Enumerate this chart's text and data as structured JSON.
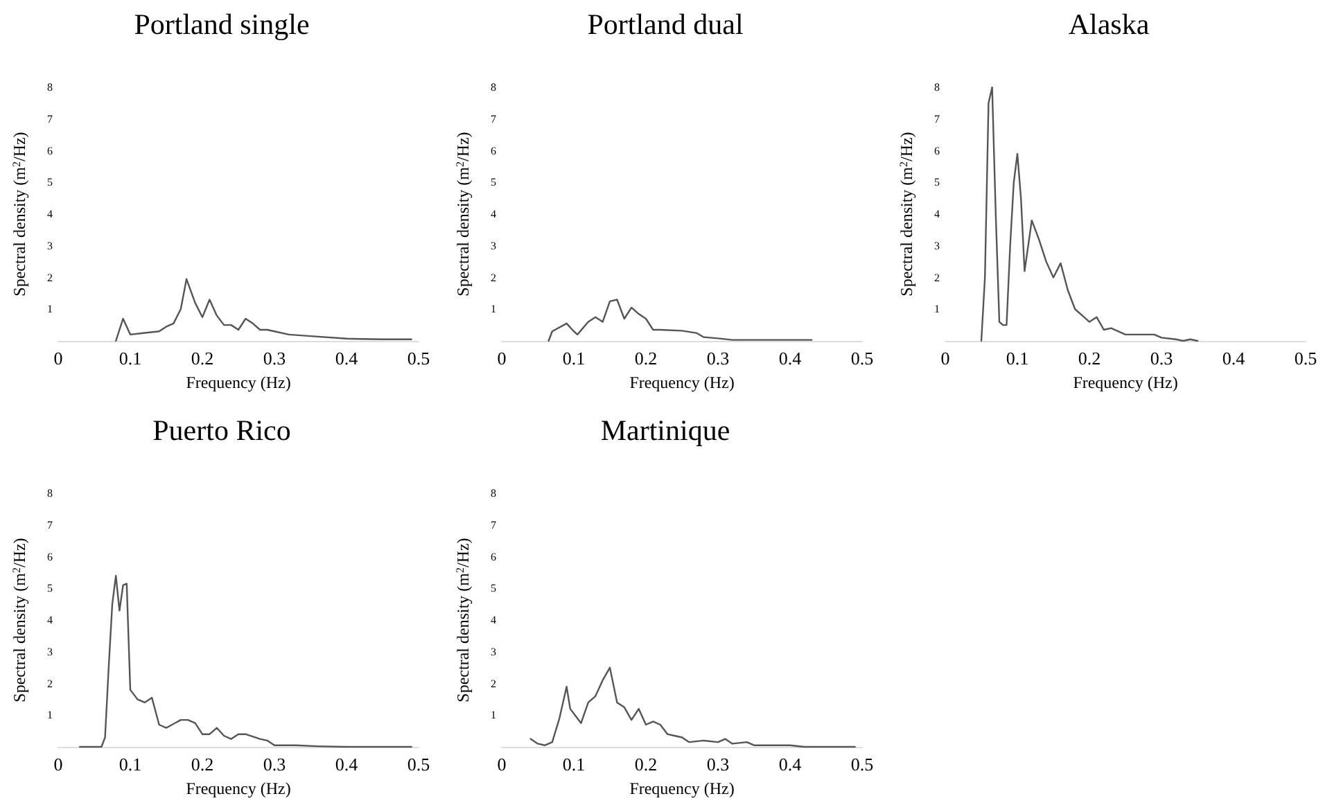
{
  "chart_data": [
    {
      "type": "line",
      "title": "Portland single",
      "xlabel": "Frequency (Hz)",
      "ylabel": "Spectral density (m$^{2}$/Hz)",
      "xlim": [
        0,
        0.5
      ],
      "xticks": [
        0,
        0.1,
        0.2,
        0.3,
        0.4,
        0.5
      ],
      "ylim": [
        0,
        8
      ],
      "yticks": [
        1,
        2,
        3,
        4,
        5,
        6,
        7,
        8
      ],
      "grid": false,
      "legend": false,
      "marker": "none",
      "line_style": "solid",
      "series": [
        {
          "color": "#555555",
          "x": [
            0.08,
            0.09,
            0.1,
            0.12,
            0.14,
            0.15,
            0.16,
            0.17,
            0.178,
            0.19,
            0.2,
            0.21,
            0.22,
            0.23,
            0.24,
            0.25,
            0.26,
            0.27,
            0.28,
            0.29,
            0.3,
            0.32,
            0.35,
            0.4,
            0.45,
            0.49
          ],
          "values": [
            0,
            0.7,
            0.2,
            0.25,
            0.3,
            0.45,
            0.55,
            1.0,
            1.95,
            1.2,
            0.75,
            1.3,
            0.8,
            0.5,
            0.5,
            0.35,
            0.7,
            0.55,
            0.35,
            0.35,
            0.3,
            0.2,
            0.15,
            0.07,
            0.05,
            0.05
          ]
        }
      ]
    },
    {
      "type": "line",
      "title": "Portland dual",
      "xlabel": "Frequency (Hz)",
      "ylabel": "Spectral density (m$^{2}$/Hz)",
      "xlim": [
        0,
        0.5
      ],
      "xticks": [
        0,
        0.1,
        0.2,
        0.3,
        0.4,
        0.5
      ],
      "ylim": [
        0,
        8
      ],
      "yticks": [
        1,
        2,
        3,
        4,
        5,
        6,
        7,
        8
      ],
      "grid": false,
      "legend": false,
      "marker": "none",
      "line_style": "solid",
      "series": [
        {
          "color": "#555555",
          "x": [
            0.065,
            0.07,
            0.09,
            0.1,
            0.105,
            0.12,
            0.13,
            0.14,
            0.15,
            0.16,
            0.17,
            0.18,
            0.19,
            0.2,
            0.21,
            0.22,
            0.25,
            0.27,
            0.28,
            0.3,
            0.32,
            0.4,
            0.43
          ],
          "values": [
            0,
            0.3,
            0.55,
            0.3,
            0.2,
            0.6,
            0.75,
            0.6,
            1.25,
            1.3,
            0.7,
            1.05,
            0.85,
            0.7,
            0.35,
            0.35,
            0.32,
            0.25,
            0.12,
            0.08,
            0.03,
            0.03,
            0.03
          ]
        }
      ]
    },
    {
      "type": "line",
      "title": "Alaska",
      "xlabel": "Frequency (Hz)",
      "ylabel": "Spectral density (m$^{2}$/Hz)",
      "xlim": [
        0,
        0.5
      ],
      "xticks": [
        0,
        0.1,
        0.2,
        0.3,
        0.4,
        0.5
      ],
      "ylim": [
        0,
        8
      ],
      "yticks": [
        1,
        2,
        3,
        4,
        5,
        6,
        7,
        8
      ],
      "grid": false,
      "legend": false,
      "marker": "none",
      "line_style": "solid",
      "series": [
        {
          "color": "#555555",
          "x": [
            0.05,
            0.055,
            0.06,
            0.065,
            0.07,
            0.075,
            0.08,
            0.085,
            0.09,
            0.095,
            0.1,
            0.105,
            0.11,
            0.115,
            0.12,
            0.13,
            0.14,
            0.15,
            0.16,
            0.17,
            0.18,
            0.19,
            0.2,
            0.21,
            0.22,
            0.23,
            0.25,
            0.29,
            0.3,
            0.32,
            0.33,
            0.34,
            0.35
          ],
          "values": [
            0,
            2,
            7.5,
            8,
            4,
            0.6,
            0.5,
            0.5,
            3,
            5,
            5.9,
            4.5,
            2.2,
            3,
            3.8,
            3.2,
            2.5,
            2,
            2.45,
            1.6,
            1.0,
            0.8,
            0.6,
            0.75,
            0.35,
            0.4,
            0.2,
            0.2,
            0.1,
            0.05,
            0,
            0.05,
            0
          ]
        }
      ]
    },
    {
      "type": "line",
      "title": "Puerto Rico",
      "xlabel": "Frequency (Hz)",
      "ylabel": "Spectral density (m$^{2}$/Hz)",
      "xlim": [
        0,
        0.5
      ],
      "xticks": [
        0,
        0.1,
        0.2,
        0.3,
        0.4,
        0.5
      ],
      "ylim": [
        0,
        8
      ],
      "yticks": [
        1,
        2,
        3,
        4,
        5,
        6,
        7,
        8
      ],
      "grid": false,
      "legend": false,
      "marker": "none",
      "line_style": "solid",
      "series": [
        {
          "color": "#555555",
          "x": [
            0.03,
            0.06,
            0.065,
            0.07,
            0.075,
            0.08,
            0.085,
            0.09,
            0.095,
            0.1,
            0.11,
            0.12,
            0.13,
            0.14,
            0.15,
            0.17,
            0.18,
            0.19,
            0.2,
            0.21,
            0.22,
            0.23,
            0.24,
            0.25,
            0.26,
            0.28,
            0.29,
            0.3,
            0.33,
            0.36,
            0.4,
            0.49
          ],
          "values": [
            0,
            0,
            0.3,
            2.5,
            4.5,
            5.4,
            4.3,
            5.1,
            5.15,
            1.8,
            1.5,
            1.4,
            1.55,
            0.7,
            0.6,
            0.85,
            0.85,
            0.75,
            0.4,
            0.4,
            0.6,
            0.35,
            0.25,
            0.4,
            0.4,
            0.25,
            0.2,
            0.05,
            0.05,
            0.02,
            0,
            0
          ]
        }
      ]
    },
    {
      "type": "line",
      "title": "Martinique",
      "xlabel": "Frequency (Hz)",
      "ylabel": "Spectral density (m$^{2}$/Hz)",
      "xlim": [
        0,
        0.5
      ],
      "xticks": [
        0,
        0.1,
        0.2,
        0.3,
        0.4,
        0.5
      ],
      "ylim": [
        0,
        8
      ],
      "yticks": [
        1,
        2,
        3,
        4,
        5,
        6,
        7,
        8
      ],
      "grid": false,
      "legend": false,
      "marker": "none",
      "line_style": "solid",
      "series": [
        {
          "color": "#555555",
          "x": [
            0.04,
            0.05,
            0.06,
            0.07,
            0.08,
            0.09,
            0.095,
            0.1,
            0.11,
            0.12,
            0.13,
            0.14,
            0.15,
            0.16,
            0.17,
            0.18,
            0.19,
            0.2,
            0.21,
            0.22,
            0.23,
            0.24,
            0.25,
            0.26,
            0.28,
            0.3,
            0.31,
            0.32,
            0.34,
            0.35,
            0.4,
            0.42,
            0.49
          ],
          "values": [
            0.25,
            0.1,
            0.05,
            0.15,
            0.9,
            1.9,
            1.2,
            1.05,
            0.75,
            1.4,
            1.6,
            2.1,
            2.5,
            1.4,
            1.25,
            0.85,
            1.2,
            0.7,
            0.8,
            0.7,
            0.4,
            0.35,
            0.3,
            0.15,
            0.2,
            0.15,
            0.25,
            0.1,
            0.15,
            0.05,
            0.05,
            0,
            0
          ]
        }
      ]
    }
  ]
}
